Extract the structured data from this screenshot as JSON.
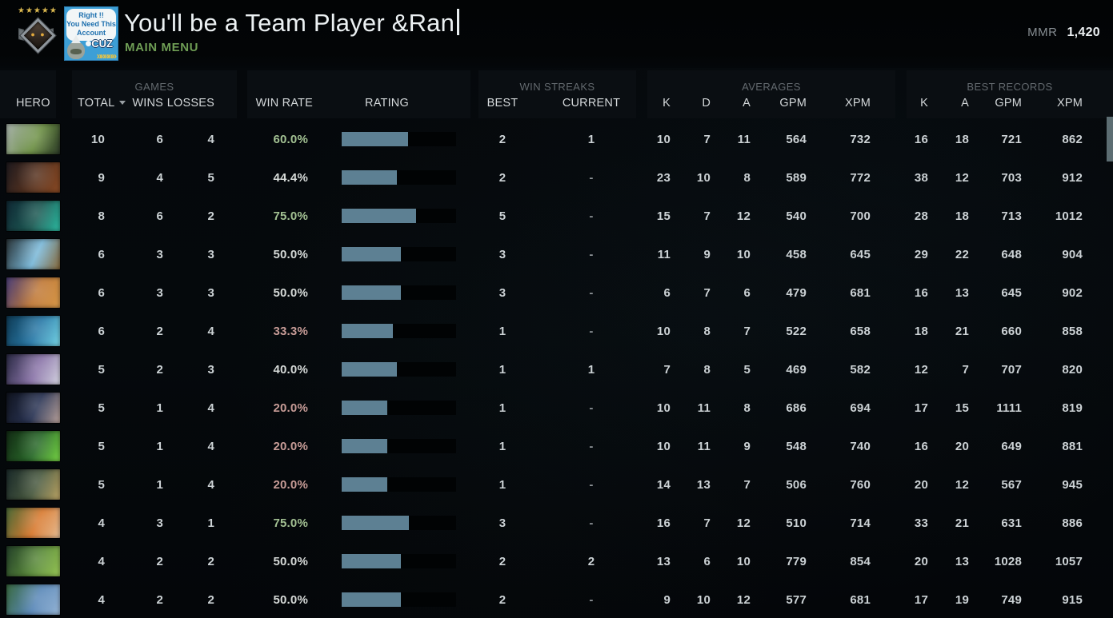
{
  "header": {
    "title": "You'll be a Team Player &Ran",
    "subtitle": "MAIN MENU",
    "mmr_label": "MMR",
    "mmr_value": "1,420",
    "rank_stars": "★★★★★",
    "rank_dots": "● ●",
    "avatar": {
      "bubble_line1": "Right !!",
      "bubble_line2": "You Need This",
      "bubble_line3": "Account",
      "name_text": "CUZ",
      "arrows": "»»»»»"
    }
  },
  "colors": {
    "accent_green": "#6f9e55",
    "rating_bar_fill": "#5d8093",
    "rating_bar_empty": "#010304",
    "win_rate_green": "#a3c193",
    "win_rate_neutral": "#d6dad8",
    "win_rate_red": "#c79c97",
    "table_text": "#ccd2d5",
    "header_text": "#d3d7d9",
    "group_text": "#63696e",
    "scrollbar": "#5c6d72"
  },
  "table": {
    "groups": {
      "games": "GAMES",
      "win_streaks": "WIN STREAKS",
      "averages": "AVERAGES",
      "best_records": "BEST RECORDS"
    },
    "columns": {
      "hero": "HERO",
      "total": "TOTAL",
      "wins": "WINS",
      "losses": "LOSSES",
      "win_rate": "WIN RATE",
      "rating": "RATING",
      "best": "BEST",
      "current": "CURRENT",
      "k": "K",
      "d": "D",
      "a": "A",
      "gpm": "GPM",
      "xpm": "XPM"
    },
    "rows": [
      {
        "hero": {
          "c1": "#aab4ae",
          "c2": "#6d9045",
          "c3": "#2c3a28"
        },
        "total": "10",
        "wins": "6",
        "losses": "4",
        "win_rate": "60.0%",
        "win_rate_tone": "green",
        "rating_fill_pct": 58,
        "streak_best": "2",
        "streak_current": "1",
        "avg_k": "10",
        "avg_d": "7",
        "avg_a": "11",
        "avg_gpm": "564",
        "avg_xpm": "732",
        "best_k": "16",
        "best_a": "18",
        "best_gpm": "721",
        "best_xpm": "862"
      },
      {
        "hero": {
          "c1": "#1e1a1e",
          "c2": "#5a3420",
          "c3": "#8a4a24"
        },
        "total": "9",
        "wins": "4",
        "losses": "5",
        "win_rate": "44.4%",
        "win_rate_tone": "neutral",
        "rating_fill_pct": 48,
        "streak_best": "2",
        "streak_current": "-",
        "avg_k": "23",
        "avg_d": "10",
        "avg_a": "8",
        "avg_gpm": "589",
        "avg_xpm": "772",
        "best_k": "38",
        "best_a": "12",
        "best_gpm": "703",
        "best_xpm": "912"
      },
      {
        "hero": {
          "c1": "#0f2733",
          "c2": "#1d5a54",
          "c3": "#2fbfa6"
        },
        "total": "8",
        "wins": "6",
        "losses": "2",
        "win_rate": "75.0%",
        "win_rate_tone": "green",
        "rating_fill_pct": 65,
        "streak_best": "5",
        "streak_current": "-",
        "avg_k": "15",
        "avg_d": "7",
        "avg_a": "12",
        "avg_gpm": "540",
        "avg_xpm": "700",
        "best_k": "28",
        "best_a": "18",
        "best_gpm": "713",
        "best_xpm": "1012"
      },
      {
        "hero": {
          "c1": "#2a3438",
          "c2": "#7ab8d8",
          "c3": "#8a6a3a"
        },
        "total": "6",
        "wins": "3",
        "losses": "3",
        "win_rate": "50.0%",
        "win_rate_tone": "neutral",
        "rating_fill_pct": 52,
        "streak_best": "3",
        "streak_current": "-",
        "avg_k": "11",
        "avg_d": "9",
        "avg_a": "10",
        "avg_gpm": "458",
        "avg_xpm": "645",
        "best_k": "29",
        "best_a": "22",
        "best_gpm": "648",
        "best_xpm": "904"
      },
      {
        "hero": {
          "c1": "#4a3f7a",
          "c2": "#c07a3a",
          "c3": "#d89a4a"
        },
        "total": "6",
        "wins": "3",
        "losses": "3",
        "win_rate": "50.0%",
        "win_rate_tone": "neutral",
        "rating_fill_pct": 52,
        "streak_best": "3",
        "streak_current": "-",
        "avg_k": "6",
        "avg_d": "7",
        "avg_a": "6",
        "avg_gpm": "479",
        "avg_xpm": "681",
        "best_k": "16",
        "best_a": "13",
        "best_gpm": "645",
        "best_xpm": "902"
      },
      {
        "hero": {
          "c1": "#0e3a54",
          "c2": "#2a7aa8",
          "c3": "#7ad8e8"
        },
        "total": "6",
        "wins": "2",
        "losses": "4",
        "win_rate": "33.3%",
        "win_rate_tone": "red",
        "rating_fill_pct": 45,
        "streak_best": "1",
        "streak_current": "-",
        "avg_k": "10",
        "avg_d": "8",
        "avg_a": "7",
        "avg_gpm": "522",
        "avg_xpm": "658",
        "best_k": "18",
        "best_a": "21",
        "best_gpm": "660",
        "best_xpm": "858"
      },
      {
        "hero": {
          "c1": "#2a2a44",
          "c2": "#8a74a8",
          "c3": "#d8d8e4"
        },
        "total": "5",
        "wins": "2",
        "losses": "3",
        "win_rate": "40.0%",
        "win_rate_tone": "neutral",
        "rating_fill_pct": 48,
        "streak_best": "1",
        "streak_current": "1",
        "avg_k": "7",
        "avg_d": "8",
        "avg_a": "5",
        "avg_gpm": "469",
        "avg_xpm": "582",
        "best_k": "12",
        "best_a": "7",
        "best_gpm": "707",
        "best_xpm": "820"
      },
      {
        "hero": {
          "c1": "#10141f",
          "c2": "#2a3454",
          "c3": "#c0a8a0"
        },
        "total": "5",
        "wins": "1",
        "losses": "4",
        "win_rate": "20.0%",
        "win_rate_tone": "red",
        "rating_fill_pct": 40,
        "streak_best": "1",
        "streak_current": "-",
        "avg_k": "10",
        "avg_d": "11",
        "avg_a": "8",
        "avg_gpm": "686",
        "avg_xpm": "694",
        "best_k": "17",
        "best_a": "15",
        "best_gpm": "1111",
        "best_xpm": "819"
      },
      {
        "hero": {
          "c1": "#122a14",
          "c2": "#2a6a2a",
          "c3": "#7ad848"
        },
        "total": "5",
        "wins": "1",
        "losses": "4",
        "win_rate": "20.0%",
        "win_rate_tone": "red",
        "rating_fill_pct": 40,
        "streak_best": "1",
        "streak_current": "-",
        "avg_k": "10",
        "avg_d": "11",
        "avg_a": "9",
        "avg_gpm": "548",
        "avg_xpm": "740",
        "best_k": "16",
        "best_a": "20",
        "best_gpm": "649",
        "best_xpm": "881"
      },
      {
        "hero": {
          "c1": "#1a2a2a",
          "c2": "#4a5a40",
          "c3": "#c0a868"
        },
        "total": "5",
        "wins": "1",
        "losses": "4",
        "win_rate": "20.0%",
        "win_rate_tone": "red",
        "rating_fill_pct": 40,
        "streak_best": "1",
        "streak_current": "-",
        "avg_k": "14",
        "avg_d": "13",
        "avg_a": "7",
        "avg_gpm": "506",
        "avg_xpm": "760",
        "best_k": "20",
        "best_a": "12",
        "best_gpm": "567",
        "best_xpm": "945"
      },
      {
        "hero": {
          "c1": "#4a6a38",
          "c2": "#d87a30",
          "c3": "#e8c098"
        },
        "total": "4",
        "wins": "3",
        "losses": "1",
        "win_rate": "75.0%",
        "win_rate_tone": "green",
        "rating_fill_pct": 59,
        "streak_best": "3",
        "streak_current": "-",
        "avg_k": "16",
        "avg_d": "7",
        "avg_a": "12",
        "avg_gpm": "510",
        "avg_xpm": "714",
        "best_k": "33",
        "best_a": "21",
        "best_gpm": "631",
        "best_xpm": "886"
      },
      {
        "hero": {
          "c1": "#24402a",
          "c2": "#5a8a3a",
          "c3": "#9ac858"
        },
        "total": "4",
        "wins": "2",
        "losses": "2",
        "win_rate": "50.0%",
        "win_rate_tone": "neutral",
        "rating_fill_pct": 52,
        "streak_best": "2",
        "streak_current": "2",
        "avg_k": "13",
        "avg_d": "6",
        "avg_a": "10",
        "avg_gpm": "779",
        "avg_xpm": "854",
        "best_k": "20",
        "best_a": "13",
        "best_gpm": "1028",
        "best_xpm": "1057"
      },
      {
        "hero": {
          "c1": "#3a6a40",
          "c2": "#5a88b8",
          "c3": "#9ab8d8"
        },
        "total": "4",
        "wins": "2",
        "losses": "2",
        "win_rate": "50.0%",
        "win_rate_tone": "neutral",
        "rating_fill_pct": 52,
        "streak_best": "2",
        "streak_current": "-",
        "avg_k": "9",
        "avg_d": "10",
        "avg_a": "12",
        "avg_gpm": "577",
        "avg_xpm": "681",
        "best_k": "17",
        "best_a": "19",
        "best_gpm": "749",
        "best_xpm": "915"
      }
    ]
  }
}
